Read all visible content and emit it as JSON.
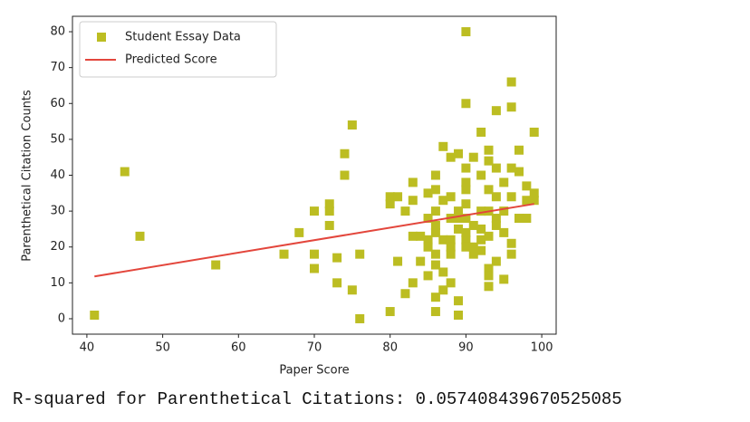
{
  "chart_data": {
    "type": "scatter",
    "xlabel": "Paper Score",
    "ylabel": "Parenthetical Citation Counts",
    "xlim": [
      38.1,
      101.9
    ],
    "ylim": [
      -4.3,
      84.3
    ],
    "xticks": [
      40,
      50,
      60,
      70,
      80,
      90,
      100
    ],
    "yticks": [
      0,
      10,
      20,
      30,
      40,
      50,
      60,
      70,
      80
    ],
    "legend": "upper left",
    "series": [
      {
        "name": "Student Essay Data",
        "color": "#bcbd22",
        "type": "scatter",
        "x": [
          41,
          45,
          47,
          57,
          66,
          68,
          70,
          70,
          70,
          72,
          72,
          72,
          73,
          73,
          74,
          74,
          75,
          75,
          76,
          76,
          80,
          80,
          80,
          81,
          81,
          82,
          82,
          83,
          83,
          83,
          83,
          84,
          84,
          85,
          85,
          85,
          85,
          85,
          86,
          86,
          86,
          86,
          86,
          86,
          86,
          86,
          86,
          87,
          87,
          87,
          87,
          87,
          88,
          88,
          88,
          88,
          88,
          88,
          88,
          89,
          89,
          89,
          89,
          89,
          89,
          90,
          90,
          90,
          90,
          90,
          90,
          90,
          90,
          90,
          90,
          91,
          91,
          91,
          91,
          92,
          92,
          92,
          92,
          92,
          92,
          93,
          93,
          93,
          93,
          93,
          93,
          93,
          93,
          94,
          94,
          94,
          94,
          94,
          94,
          95,
          95,
          95,
          95,
          96,
          96,
          96,
          96,
          96,
          96,
          97,
          97,
          97,
          98,
          98,
          98,
          99,
          99,
          99
        ],
        "values": [
          1,
          41,
          23,
          15,
          18,
          24,
          30,
          18,
          14,
          32,
          30,
          26,
          17,
          10,
          46,
          40,
          54,
          8,
          18,
          0,
          34,
          32,
          2,
          34,
          16,
          30,
          7,
          38,
          33,
          23,
          10,
          23,
          16,
          35,
          28,
          22,
          20,
          12,
          40,
          36,
          30,
          26,
          24,
          18,
          15,
          6,
          2,
          48,
          33,
          22,
          13,
          8,
          45,
          34,
          28,
          22,
          20,
          18,
          10,
          46,
          30,
          28,
          25,
          5,
          1,
          80,
          60,
          42,
          38,
          36,
          32,
          28,
          24,
          22,
          20,
          45,
          26,
          20,
          18,
          52,
          40,
          30,
          25,
          22,
          19,
          47,
          44,
          36,
          30,
          23,
          14,
          12,
          9,
          58,
          42,
          34,
          28,
          26,
          16,
          38,
          30,
          24,
          11,
          66,
          59,
          42,
          34,
          21,
          18,
          47,
          41,
          28,
          37,
          33,
          28,
          52,
          35,
          33
        ]
      },
      {
        "name": "Predicted Score",
        "color": "#e3463c",
        "type": "line",
        "x": [
          41,
          99
        ],
        "values": [
          11.8,
          32
        ]
      }
    ]
  },
  "output": "R-squared for Parenthetical Citations: 0.057408439670525085"
}
